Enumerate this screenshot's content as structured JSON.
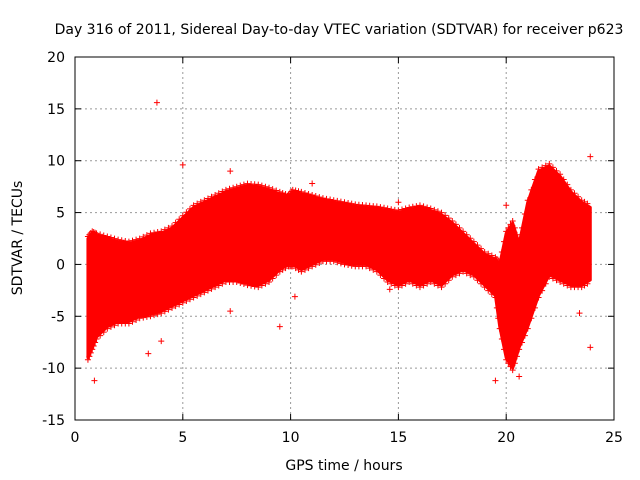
{
  "chart_data": {
    "type": "scatter",
    "title": "Day 316 of 2011, Sidereal Day-to-day VTEC variation (SDTVAR) for receiver p623",
    "xlabel": "GPS time / hours",
    "ylabel": "SDTVAR / TECUs",
    "xlim": [
      0,
      25
    ],
    "ylim": [
      -15,
      20
    ],
    "xticks": [
      0,
      5,
      10,
      15,
      20,
      25
    ],
    "yticks": [
      -15,
      -10,
      -5,
      0,
      5,
      10,
      15,
      20
    ],
    "grid": true,
    "marker": "+",
    "color": "#ff0000",
    "envelope": {
      "x": [
        0.6,
        0.8,
        1.0,
        1.5,
        2.0,
        2.5,
        3.0,
        3.5,
        4.0,
        4.5,
        5.0,
        5.5,
        6.0,
        6.5,
        7.0,
        7.5,
        8.0,
        8.5,
        9.0,
        9.5,
        9.9,
        10.1,
        10.5,
        11.0,
        11.5,
        12.0,
        12.5,
        13.0,
        13.5,
        14.0,
        14.5,
        15.0,
        15.5,
        16.0,
        16.5,
        17.0,
        17.5,
        18.0,
        18.5,
        19.0,
        19.5,
        19.7,
        20.0,
        20.3,
        20.6,
        21.0,
        21.5,
        22.0,
        22.5,
        23.0,
        23.5,
        23.9
      ],
      "upper": [
        2.5,
        3.0,
        2.8,
        2.5,
        2.2,
        2.0,
        2.3,
        2.8,
        3.0,
        3.5,
        4.5,
        5.5,
        6.0,
        6.5,
        7.0,
        7.3,
        7.6,
        7.5,
        7.2,
        6.8,
        6.5,
        7.0,
        6.8,
        6.5,
        6.2,
        6.0,
        5.8,
        5.6,
        5.5,
        5.4,
        5.2,
        5.0,
        5.3,
        5.5,
        5.2,
        4.8,
        4.0,
        3.0,
        2.0,
        1.0,
        0.5,
        0.0,
        3.0,
        4.0,
        2.0,
        6.0,
        9.0,
        9.5,
        8.5,
        7.0,
        6.0,
        5.5
      ],
      "lower": [
        -9.0,
        -8.0,
        -7.0,
        -6.0,
        -5.5,
        -5.5,
        -5.0,
        -4.8,
        -4.5,
        -4.0,
        -3.5,
        -3.0,
        -2.5,
        -2.0,
        -1.5,
        -1.5,
        -1.8,
        -2.0,
        -1.5,
        -0.5,
        0.0,
        0.0,
        -0.5,
        0.0,
        0.5,
        0.5,
        0.2,
        0.0,
        0.0,
        -0.5,
        -1.5,
        -2.0,
        -1.5,
        -2.0,
        -1.5,
        -2.0,
        -1.0,
        -0.5,
        -1.0,
        -2.0,
        -3.0,
        -6.0,
        -9.0,
        -10.0,
        -8.0,
        -6.0,
        -3.0,
        -1.0,
        -1.5,
        -2.0,
        -2.0,
        -1.5
      ]
    },
    "outliers": [
      {
        "x": 3.8,
        "y": 15.6
      },
      {
        "x": 7.2,
        "y": 9.0
      },
      {
        "x": 5.0,
        "y": 9.6
      },
      {
        "x": 3.4,
        "y": -8.6
      },
      {
        "x": 4.0,
        "y": -7.4
      },
      {
        "x": 0.9,
        "y": -11.2
      },
      {
        "x": 9.5,
        "y": -6.0
      },
      {
        "x": 10.2,
        "y": -3.1
      },
      {
        "x": 7.2,
        "y": -4.5
      },
      {
        "x": 11.0,
        "y": 7.8
      },
      {
        "x": 15.0,
        "y": 6.0
      },
      {
        "x": 19.5,
        "y": -11.2
      },
      {
        "x": 20.6,
        "y": -10.8
      },
      {
        "x": 23.4,
        "y": -4.7
      },
      {
        "x": 23.9,
        "y": -8.0
      },
      {
        "x": 23.9,
        "y": 10.4
      },
      {
        "x": 20.0,
        "y": 5.7
      },
      {
        "x": 14.6,
        "y": -2.4
      }
    ]
  }
}
